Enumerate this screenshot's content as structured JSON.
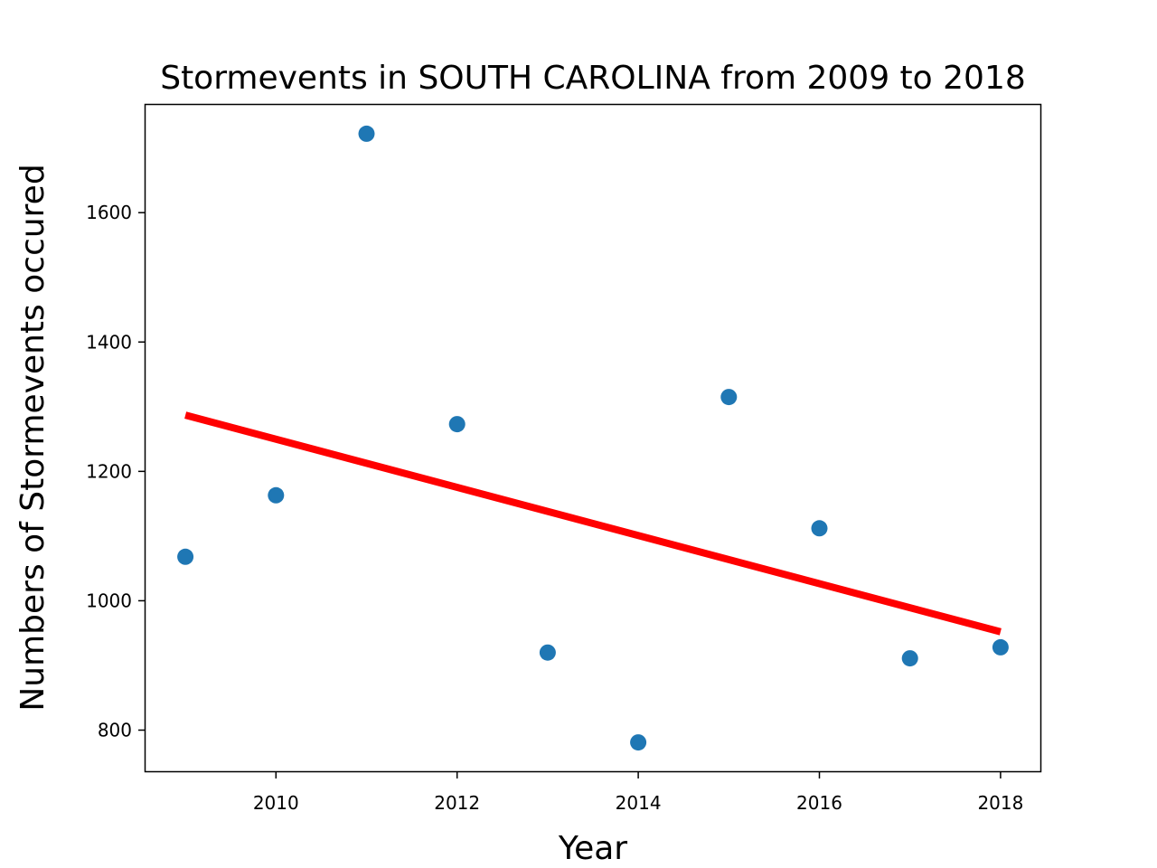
{
  "chart_data": {
    "type": "scatter",
    "title": "Stormevents in SOUTH CAROLINA from 2009 to 2018",
    "xlabel": "Year",
    "ylabel": "Numbers of Stormevents occured",
    "xlim": [
      2008.55,
      2018.45
    ],
    "ylim": [
      735,
      1768
    ],
    "x_ticks": [
      2010,
      2012,
      2014,
      2016,
      2018
    ],
    "y_ticks": [
      800,
      1000,
      1200,
      1400,
      1600
    ],
    "grid": false,
    "series": [
      {
        "type": "scatter",
        "color": "#1f77b4",
        "points": [
          {
            "x": 2009,
            "y": 1068
          },
          {
            "x": 2010,
            "y": 1163
          },
          {
            "x": 2011,
            "y": 1722
          },
          {
            "x": 2012,
            "y": 1273
          },
          {
            "x": 2013,
            "y": 920
          },
          {
            "x": 2014,
            "y": 781
          },
          {
            "x": 2015,
            "y": 1315
          },
          {
            "x": 2016,
            "y": 1112
          },
          {
            "x": 2017,
            "y": 911
          },
          {
            "x": 2018,
            "y": 928
          }
        ]
      },
      {
        "type": "line",
        "color": "#ff0000",
        "points": [
          {
            "x": 2009,
            "y": 1287
          },
          {
            "x": 2018,
            "y": 952
          }
        ]
      }
    ]
  }
}
